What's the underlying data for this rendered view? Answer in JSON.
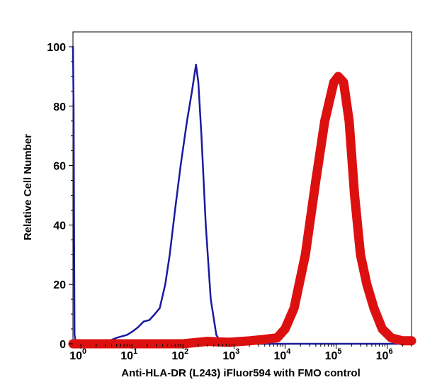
{
  "chart_data": {
    "type": "line",
    "title": "",
    "xlabel": "Anti-HLA-DR (L243) iFluor594 with FMO control",
    "ylabel": "Relative Cell Number",
    "x_scale": "log",
    "xlim": [
      0.7,
      3000000
    ],
    "ylim": [
      0,
      105
    ],
    "grid": false,
    "y_ticks": [
      {
        "value": 0,
        "label": "0"
      },
      {
        "value": 20,
        "label": "20"
      },
      {
        "value": 40,
        "label": "40"
      },
      {
        "value": 60,
        "label": "60"
      },
      {
        "value": 80,
        "label": "80"
      },
      {
        "value": 100,
        "label": "100"
      }
    ],
    "x_ticks": [
      {
        "value": 1,
        "base": "10",
        "exp": "0"
      },
      {
        "value": 10,
        "base": "10",
        "exp": "1"
      },
      {
        "value": 100,
        "base": "10",
        "exp": "2"
      },
      {
        "value": 1000,
        "base": "10",
        "exp": "3"
      },
      {
        "value": 10000,
        "base": "10",
        "exp": "4"
      },
      {
        "value": 100000,
        "base": "10",
        "exp": "5"
      },
      {
        "value": 1000000,
        "base": "10",
        "exp": "6"
      }
    ],
    "series": [
      {
        "color": "#1a1aa0",
        "x": [
          0.7,
          0.72,
          0.75,
          0.8,
          1,
          2,
          3,
          5,
          8,
          10,
          13,
          17,
          22,
          28,
          35,
          45,
          55,
          70,
          90,
          120,
          150,
          180,
          200,
          230,
          280,
          350,
          450,
          550,
          700,
          1000,
          3000000
        ],
        "y": [
          100,
          80,
          3,
          0,
          0,
          0,
          0.5,
          2,
          3,
          4,
          5.5,
          7.5,
          8,
          10,
          12,
          20,
          30,
          45,
          60,
          75,
          85,
          94,
          88,
          70,
          40,
          15,
          3,
          0.5,
          0,
          0,
          0
        ]
      },
      {
        "color": "#dd1010",
        "x": [
          0.7,
          100,
          300,
          800,
          2000,
          4000,
          7000,
          10000,
          15000,
          25000,
          40000,
          60000,
          90000,
          110000,
          140000,
          180000,
          230000,
          300000,
          400000,
          550000,
          800000,
          1200000,
          2000000,
          3000000
        ],
        "y": [
          0,
          0,
          0.8,
          0.5,
          1,
          1.5,
          2,
          5,
          12,
          30,
          55,
          75,
          88,
          90,
          88,
          75,
          50,
          30,
          20,
          12,
          5,
          2,
          1,
          1
        ]
      }
    ]
  }
}
